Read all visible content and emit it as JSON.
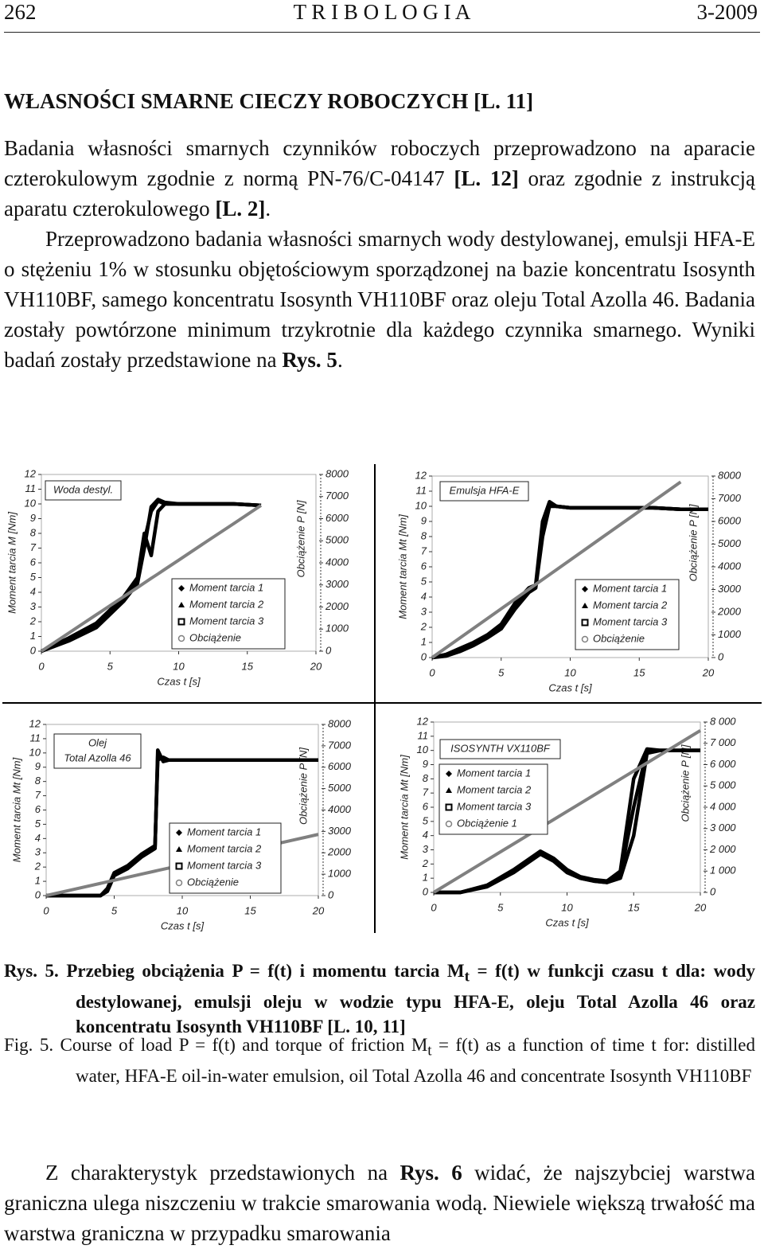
{
  "header": {
    "page": "262",
    "journal": "T R I B O L O G I A",
    "issue": "3-2009"
  },
  "heading": "WŁASNOŚCI SMARNE CIECZY ROBOCZYCH [L. 11]",
  "paragraphs": [
    [
      "Badania własności smarnych czynników roboczych przeprowadzono na aparacie czterokulowym zgodnie z normą PN-76/C-04147 ",
      "[L. 12]",
      " oraz zgodnie z instrukcją aparatu czterokulowego ",
      "[L. 2]",
      "."
    ],
    [
      "Przeprowadzono badania własności smarnych wody destylowanej, emulsji HFA-E o stężeniu 1% w stosunku objętościowym sporządzonej na bazie koncentratu Isosynth VH110BF, samego koncentratu Isosynth VH110BF oraz oleju Total Azolla 46. Badania zostały powtórzone minimum trzykrotnie dla każdego czynnika smarnego. Wyniki badań zostały przedstawione na ",
      "Rys. 5",
      "."
    ]
  ],
  "chart_data": [
    {
      "type": "line",
      "title": [
        "Woda destyl."
      ],
      "x_label": "Czas  t [s]",
      "y_label": "Moment tarcia  M [Nm]",
      "y2_label": "Obciążenie  P [N]",
      "xlim": [
        0,
        20
      ],
      "xticks": [
        0,
        5,
        10,
        15,
        20
      ],
      "ylim": [
        0,
        12
      ],
      "yticks": [
        0,
        1,
        2,
        3,
        4,
        5,
        6,
        7,
        8,
        9,
        10,
        11,
        12
      ],
      "y2lim": [
        0,
        8000
      ],
      "y2ticks": [
        0,
        1000,
        2000,
        3000,
        4000,
        5000,
        6000,
        7000,
        8000
      ],
      "x": [
        0,
        2,
        4,
        5,
        6,
        7,
        7.5,
        8,
        8.5,
        9,
        10,
        12,
        14,
        16
      ],
      "series": [
        {
          "name": "Moment tarcia 1",
          "color": "#000000",
          "marker": "diamond",
          "values": [
            0,
            0.8,
            1.8,
            2.7,
            3.6,
            4.8,
            7.5,
            9.5,
            10.2,
            10,
            10,
            10,
            10,
            9.9
          ]
        },
        {
          "name": "Moment tarcia 2",
          "color": "#000000",
          "marker": "triangle",
          "values": [
            0,
            0.7,
            1.6,
            2.5,
            3.4,
            4.6,
            7,
            9.8,
            10.3,
            10.1,
            10,
            10,
            10,
            9.9
          ]
        },
        {
          "name": "Moment tarcia 3",
          "color": "#000000",
          "marker": "square",
          "values": [
            0,
            0.9,
            1.9,
            2.8,
            3.7,
            5,
            8,
            6.5,
            9.5,
            10,
            10,
            10,
            10,
            9.9
          ]
        },
        {
          "name": "Obciążenie",
          "color": "#808080",
          "marker": "circle",
          "axis": "y2",
          "values": [
            0,
            825,
            1650,
            2060,
            2470,
            2880,
            3090,
            3300,
            3500,
            3710,
            4120,
            4950,
            5770,
            6600
          ]
        }
      ]
    },
    {
      "type": "line",
      "title": [
        "Emulsja HFA-E"
      ],
      "x_label": "Czas  t [s]",
      "y_label": "Moment tarcia  Mt [Nm]",
      "y2_label": "Obciążenie  P [N]",
      "xlim": [
        0,
        20
      ],
      "xticks": [
        0,
        5,
        10,
        15,
        20
      ],
      "ylim": [
        0,
        12
      ],
      "yticks": [
        0,
        1,
        2,
        3,
        4,
        5,
        6,
        7,
        8,
        9,
        10,
        11,
        12
      ],
      "y2lim": [
        0,
        8000
      ],
      "y2ticks": [
        0,
        1000,
        2000,
        3000,
        4000,
        5000,
        6000,
        7000,
        8000
      ],
      "x": [
        0,
        1,
        2,
        3,
        4,
        5,
        6,
        7,
        7.5,
        8,
        8.5,
        9,
        10,
        12,
        14,
        16,
        18,
        20
      ],
      "series": [
        {
          "name": "Moment tarcia 1",
          "color": "#000000",
          "marker": "diamond",
          "values": [
            0,
            0.2,
            0.5,
            0.9,
            1.4,
            2,
            3.3,
            4.4,
            4.7,
            8.5,
            10.2,
            10,
            9.9,
            9.9,
            9.9,
            9.9,
            9.8,
            9.8
          ]
        },
        {
          "name": "Moment tarcia 2",
          "color": "#000000",
          "marker": "triangle",
          "values": [
            0,
            0.2,
            0.6,
            1,
            1.5,
            2.2,
            3.6,
            4.6,
            4.8,
            9,
            10.3,
            10,
            9.9,
            9.9,
            9.9,
            9.9,
            9.8,
            9.8
          ]
        },
        {
          "name": "Moment tarcia 3",
          "color": "#000000",
          "marker": "square",
          "values": [
            0,
            0.1,
            0.4,
            0.8,
            1.3,
            1.9,
            3.2,
            4.3,
            4.6,
            8,
            10,
            10,
            9.9,
            9.9,
            9.9,
            9.9,
            9.8,
            9.8
          ]
        },
        {
          "name": "Obciążenie",
          "color": "#808080",
          "marker": "circle",
          "axis": "y2",
          "values": [
            0,
            430,
            860,
            1290,
            1720,
            2150,
            2580,
            3010,
            3225,
            3440,
            3655,
            3870,
            4300,
            5160,
            6020,
            6880,
            7740,
            null
          ]
        }
      ]
    },
    {
      "type": "line",
      "title": [
        "Olej",
        "Total Azolla 46"
      ],
      "x_label": "Czas  t [s]",
      "y_label": "Moment tarcia  Mt [Nm]",
      "y2_label": "Obciążenie  P [N]",
      "xlim": [
        0,
        20
      ],
      "xticks": [
        0,
        5,
        10,
        15,
        20
      ],
      "ylim": [
        0,
        12
      ],
      "yticks": [
        0,
        1,
        2,
        3,
        4,
        5,
        6,
        7,
        8,
        9,
        10,
        11,
        12
      ],
      "y2lim": [
        0,
        8000
      ],
      "y2ticks": [
        0,
        1000,
        2000,
        3000,
        4000,
        5000,
        6000,
        7000,
        8000
      ],
      "x": [
        0,
        2,
        4,
        4.5,
        5,
        6,
        7,
        8,
        8.2,
        8.6,
        9,
        10,
        12,
        14,
        16,
        18,
        20
      ],
      "series": [
        {
          "name": "Moment tarcia 1",
          "color": "#000000",
          "marker": "diamond",
          "values": [
            0,
            0,
            0,
            0.4,
            1.5,
            2,
            2.8,
            3.4,
            9.8,
            9.6,
            9.5,
            9.5,
            9.5,
            9.5,
            9.5,
            9.5,
            9.5
          ]
        },
        {
          "name": "Moment tarcia 2",
          "color": "#000000",
          "marker": "triangle",
          "values": [
            0,
            0,
            0,
            0.5,
            1.6,
            2.1,
            2.9,
            3.5,
            9.5,
            9.7,
            9.5,
            9.5,
            9.5,
            9.5,
            9.5,
            9.5,
            9.5
          ]
        },
        {
          "name": "Moment tarcia 3",
          "color": "#000000",
          "marker": "square",
          "values": [
            0,
            0,
            0,
            0.3,
            1.4,
            1.9,
            2.7,
            3.3,
            10.2,
            9.4,
            9.5,
            9.5,
            9.5,
            9.5,
            9.5,
            9.5,
            9.5
          ]
        },
        {
          "name": "Obciążenie",
          "color": "#808080",
          "marker": "circle",
          "axis": "y2",
          "values": [
            0,
            286,
            572,
            644,
            715,
            858,
            1001,
            1144,
            1173,
            1230,
            1287,
            1430,
            1716,
            2002,
            2288,
            2574,
            2860
          ]
        }
      ]
    },
    {
      "type": "line",
      "title": [
        "ISOSYNTH VX110BF"
      ],
      "x_label": "Czas  t [s]",
      "y_label": "Moment tarcia  Mt [Nm]",
      "y2_label": "Obciążenie  P [N]",
      "xlim": [
        0,
        20
      ],
      "xticks": [
        0,
        5,
        10,
        15,
        20
      ],
      "ylim": [
        0,
        12
      ],
      "yticks": [
        0,
        1,
        2,
        3,
        4,
        5,
        6,
        7,
        8,
        9,
        10,
        11,
        12
      ],
      "y2lim": [
        0,
        8000
      ],
      "y2ticks": [
        0,
        {
          "value": 1000,
          "label": "1 000"
        },
        {
          "value": 2000,
          "label": "2 000"
        },
        {
          "value": 3000,
          "label": "3 000"
        },
        {
          "value": 4000,
          "label": "4 000"
        },
        {
          "value": 5000,
          "label": "5 000"
        },
        {
          "value": 6000,
          "label": "6 000"
        },
        {
          "value": 7000,
          "label": "7 000"
        },
        {
          "value": 8000,
          "label": "8 000"
        }
      ],
      "x": [
        0,
        2,
        4,
        6,
        8,
        9,
        10,
        11,
        12,
        13,
        14,
        15,
        16,
        17,
        18,
        19,
        20
      ],
      "series": [
        {
          "name": "Moment tarcia 1",
          "color": "#000000",
          "marker": "diamond",
          "values": [
            0,
            0,
            0.5,
            1.5,
            2.8,
            2.3,
            1.5,
            1,
            0.8,
            0.7,
            1,
            4,
            9.8,
            10,
            10,
            10,
            10
          ]
        },
        {
          "name": "Moment tarcia 2",
          "color": "#000000",
          "marker": "triangle",
          "values": [
            0,
            0,
            0.4,
            1.4,
            2.7,
            2.2,
            1.4,
            1,
            0.8,
            0.7,
            1.2,
            6,
            10,
            10,
            10,
            10,
            10
          ]
        },
        {
          "name": "Moment tarcia 3",
          "color": "#000000",
          "marker": "square",
          "values": [
            0,
            0,
            0.5,
            1.6,
            2.9,
            2.4,
            1.6,
            1.1,
            0.9,
            0.8,
            1.5,
            8,
            10.1,
            10,
            10,
            10,
            10
          ]
        },
        {
          "name": "Obciążenie 1",
          "color": "#808080",
          "marker": "circle",
          "axis": "y2",
          "values": [
            0,
            760,
            1520,
            2280,
            3040,
            3420,
            3800,
            4180,
            4560,
            4940,
            5320,
            5700,
            6080,
            6460,
            6840,
            7220,
            7600
          ]
        }
      ]
    }
  ],
  "caption": {
    "label": "Rys. 5.",
    "pl": [
      " Przebieg obciążenia P = f(t) i momentu tarcia M",
      "t",
      " = f(t) w funkcji czasu t dla: wody destylowanej, emulsji oleju w wodzie typu HFA-E, oleju Total Azolla 46 oraz koncentratu Isosynth VH110BF [L. 10, 11]"
    ],
    "en_label": "Fig.  5.",
    "en": [
      " Course of load P = f(t) and torque of friction M",
      "t",
      " = f(t) as a function of time t for: distilled water, HFA-E oil-in-water emulsion, oil Total Azolla 46 and concentrate Isosynth VH110BF"
    ]
  },
  "closing": [
    "Z charakterystyk przedstawionych na ",
    "Rys. 6",
    " widać, że najszybciej warstwa graniczna ulega niszczeniu w trakcie smarowania wodą. Niewiele większą trwałość ma warstwa graniczna w przypadku smarowania"
  ]
}
